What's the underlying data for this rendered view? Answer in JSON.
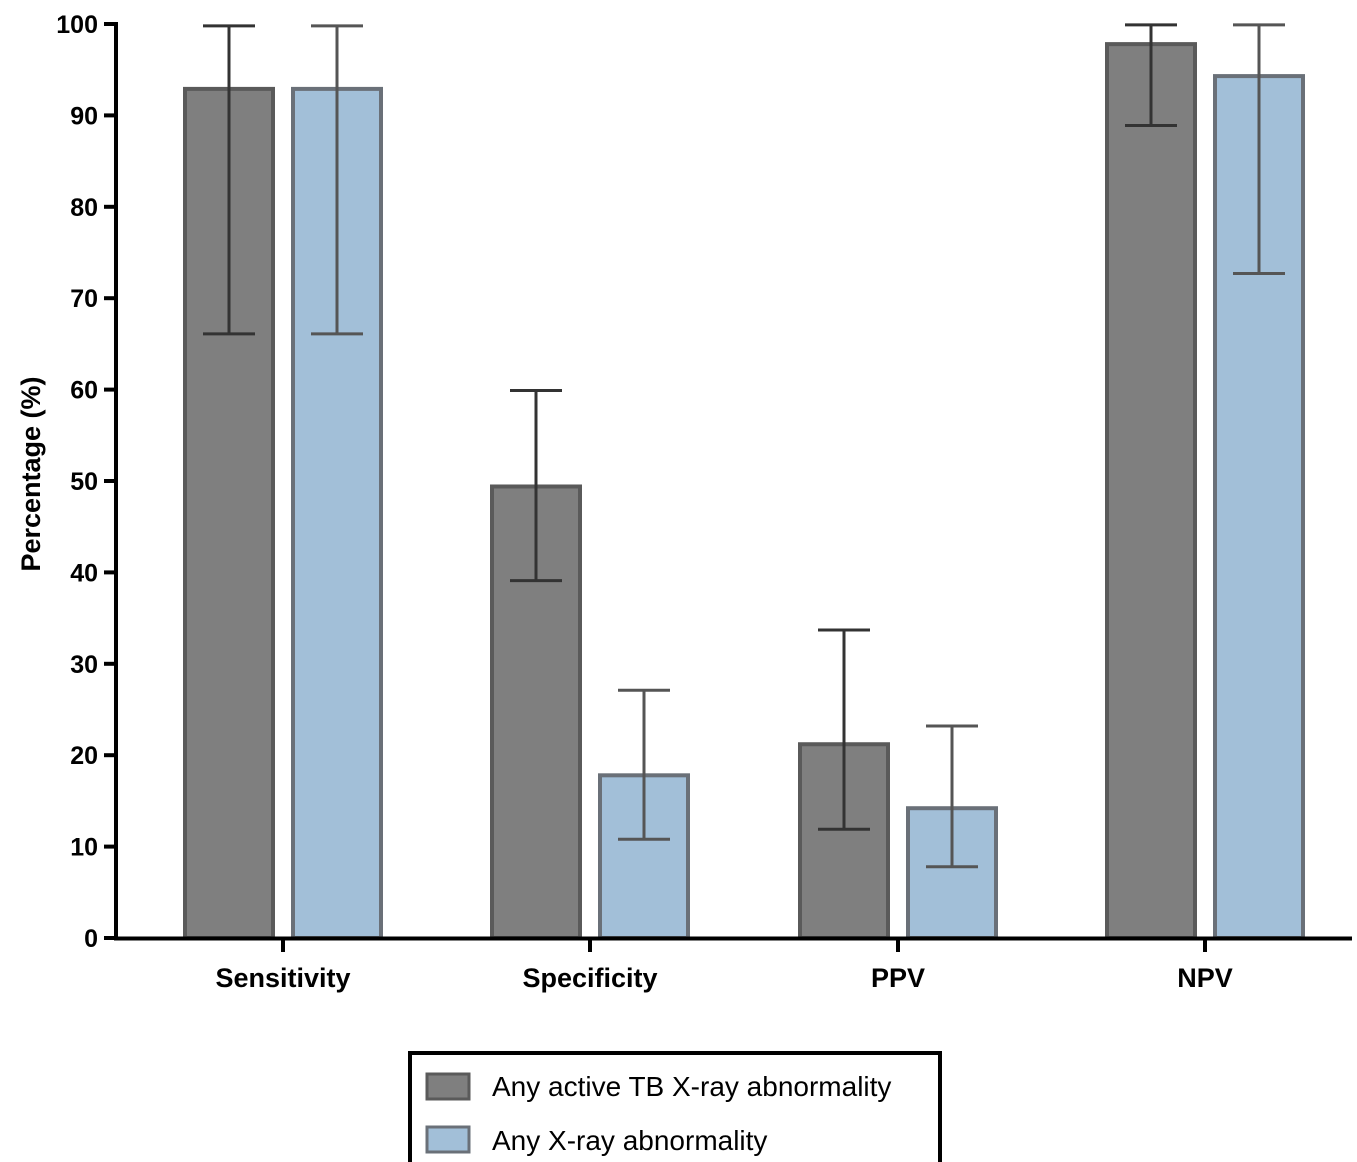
{
  "chart_data": {
    "type": "bar",
    "title": "",
    "xlabel": "",
    "ylabel": "Percentage (%)",
    "ylim": [
      0,
      100
    ],
    "yticks": [
      0,
      10,
      20,
      30,
      40,
      50,
      60,
      70,
      80,
      90,
      100
    ],
    "categories": [
      "Sensitivity",
      "Specificity",
      "PPV",
      "NPV"
    ],
    "series": [
      {
        "name": "Any active TB X-ray abnormality",
        "color": "#7f7f7f",
        "values": [
          92.9,
          49.4,
          21.2,
          97.8
        ],
        "error_low": [
          66.1,
          39.1,
          11.9,
          88.9
        ],
        "error_high": [
          99.8,
          59.9,
          33.7,
          99.9
        ]
      },
      {
        "name": "Any X-ray abnormality",
        "color": "#a2bfd8",
        "values": [
          92.9,
          17.8,
          14.2,
          94.3
        ],
        "error_low": [
          66.1,
          10.8,
          7.8,
          72.7
        ],
        "error_high": [
          99.8,
          27.1,
          23.2,
          99.9
        ]
      }
    ],
    "grid": false,
    "legend_position": "bottom"
  }
}
